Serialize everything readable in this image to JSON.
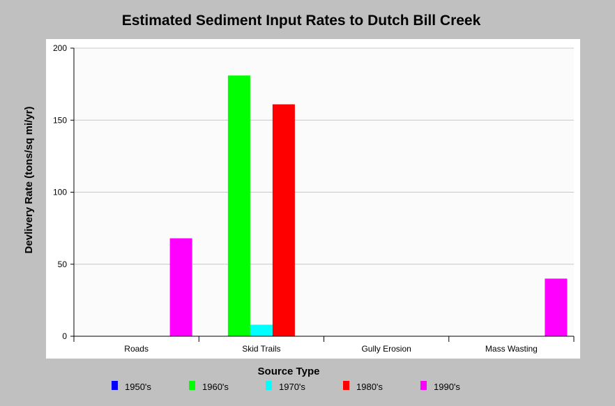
{
  "chart_data": {
    "type": "bar",
    "title": "Estimated Sediment Input Rates to Dutch Bill Creek",
    "xlabel": "Source Type",
    "ylabel": "Devlivery Rate (tons/sq mi/yr)",
    "ylim": [
      0,
      200
    ],
    "yticks": [
      0,
      50,
      100,
      150,
      200
    ],
    "grid": true,
    "legend_position": "bottom",
    "categories": [
      "Roads",
      "Skid Trails",
      "Gully Erosion",
      "Mass Wasting"
    ],
    "series": [
      {
        "name": "1950's",
        "color": "#0000ff",
        "values": [
          0,
          0,
          0,
          0
        ]
      },
      {
        "name": "1960's",
        "color": "#00ff00",
        "values": [
          0,
          181,
          0,
          0
        ]
      },
      {
        "name": "1970's",
        "color": "#00ffff",
        "values": [
          0,
          8,
          0,
          0
        ]
      },
      {
        "name": "1980's",
        "color": "#ff0000",
        "values": [
          0,
          161,
          0,
          0
        ]
      },
      {
        "name": "1990's",
        "color": "#ff00ff",
        "values": [
          68,
          0,
          0,
          40
        ]
      }
    ]
  }
}
